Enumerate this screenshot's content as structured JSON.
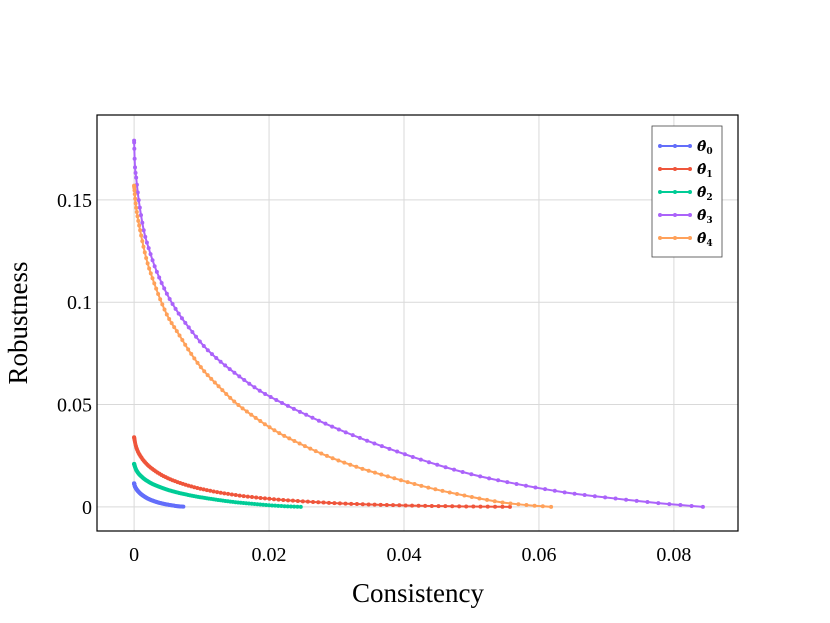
{
  "chart_data": {
    "type": "line",
    "xlabel": "Consistency",
    "ylabel": "Robustness",
    "xlim": [
      -0.0055,
      0.0895
    ],
    "ylim": [
      -0.0118,
      0.1915
    ],
    "xticks": [
      0,
      0.02,
      0.04,
      0.06,
      0.08
    ],
    "xtick_labels": [
      "0",
      "0.02",
      "0.04",
      "0.06",
      "0.08"
    ],
    "yticks": [
      0,
      0.05,
      0.1,
      0.15
    ],
    "ytick_labels": [
      "0",
      "0.05",
      "0.1",
      "0.15"
    ],
    "grid": true,
    "legend_position": "top-right",
    "series": [
      {
        "name": "θ̂0",
        "legend_base": "θ̂",
        "legend_sub": "0",
        "color": "#636efa",
        "x": [
          0,
          0.0001,
          0.0003,
          0.0006,
          0.001,
          0.0015,
          0.002,
          0.0027,
          0.0035,
          0.0045,
          0.0055,
          0.0065,
          0.0073
        ],
        "y": [
          0.0115,
          0.0102,
          0.0089,
          0.0076,
          0.0063,
          0.0051,
          0.0041,
          0.0031,
          0.0022,
          0.0014,
          0.0008,
          0.0003,
          0.0001
        ]
      },
      {
        "name": "θ̂1",
        "legend_base": "θ̂",
        "legend_sub": "1",
        "color": "#ef553b",
        "x": [
          0,
          0.0002,
          0.0005,
          0.001,
          0.0017,
          0.0026,
          0.0037,
          0.005,
          0.0067,
          0.0088,
          0.0115,
          0.015,
          0.0195,
          0.025,
          0.032,
          0.04,
          0.049,
          0.0557
        ],
        "y": [
          0.034,
          0.0305,
          0.0275,
          0.0245,
          0.0215,
          0.0188,
          0.0163,
          0.014,
          0.0118,
          0.0097,
          0.0077,
          0.0058,
          0.0041,
          0.0027,
          0.0015,
          0.0007,
          0.0002,
          0.0
        ]
      },
      {
        "name": "θ̂2",
        "legend_base": "θ̂",
        "legend_sub": "2",
        "color": "#00cc96",
        "x": [
          0,
          0.0002,
          0.0005,
          0.001,
          0.0017,
          0.0026,
          0.0038,
          0.0053,
          0.0072,
          0.0095,
          0.0122,
          0.0152,
          0.0185,
          0.0218,
          0.0247
        ],
        "y": [
          0.021,
          0.0189,
          0.017,
          0.0151,
          0.0132,
          0.0114,
          0.0097,
          0.008,
          0.0064,
          0.0049,
          0.0035,
          0.0022,
          0.0012,
          0.0004,
          0.0
        ]
      },
      {
        "name": "θ̂3",
        "legend_base": "θ̂",
        "legend_sub": "3",
        "color": "#ab63fa",
        "x": [
          0,
          0.0001,
          0.0003,
          0.0006,
          0.001,
          0.0015,
          0.0022,
          0.003,
          0.004,
          0.0052,
          0.0067,
          0.0085,
          0.0105,
          0.0128,
          0.0155,
          0.0185,
          0.0218,
          0.0255,
          0.0295,
          0.034,
          0.039,
          0.0445,
          0.0505,
          0.057,
          0.064,
          0.0715,
          0.0788,
          0.0843
        ],
        "y": [
          0.179,
          0.168,
          0.161,
          0.152,
          0.143,
          0.134,
          0.126,
          0.118,
          0.11,
          0.102,
          0.094,
          0.086,
          0.078,
          0.071,
          0.064,
          0.057,
          0.051,
          0.045,
          0.039,
          0.033,
          0.027,
          0.021,
          0.0155,
          0.011,
          0.007,
          0.004,
          0.0015,
          0.0
        ]
      },
      {
        "name": "θ̂4",
        "legend_base": "θ̂",
        "legend_sub": "4",
        "color": "#ffa15a",
        "x": [
          0,
          0.0002,
          0.0005,
          0.0009,
          0.0014,
          0.002,
          0.0028,
          0.0038,
          0.005,
          0.0065,
          0.0082,
          0.0102,
          0.0125,
          0.015,
          0.0178,
          0.021,
          0.0245,
          0.0285,
          0.033,
          0.038,
          0.0435,
          0.049,
          0.0545,
          0.0584,
          0.0618
        ],
        "y": [
          0.157,
          0.149,
          0.142,
          0.135,
          0.127,
          0.119,
          0.111,
          0.102,
          0.093,
          0.085,
          0.076,
          0.067,
          0.059,
          0.051,
          0.044,
          0.037,
          0.031,
          0.025,
          0.0195,
          0.0145,
          0.0095,
          0.0055,
          0.0022,
          0.0008,
          0.0
        ]
      }
    ]
  }
}
